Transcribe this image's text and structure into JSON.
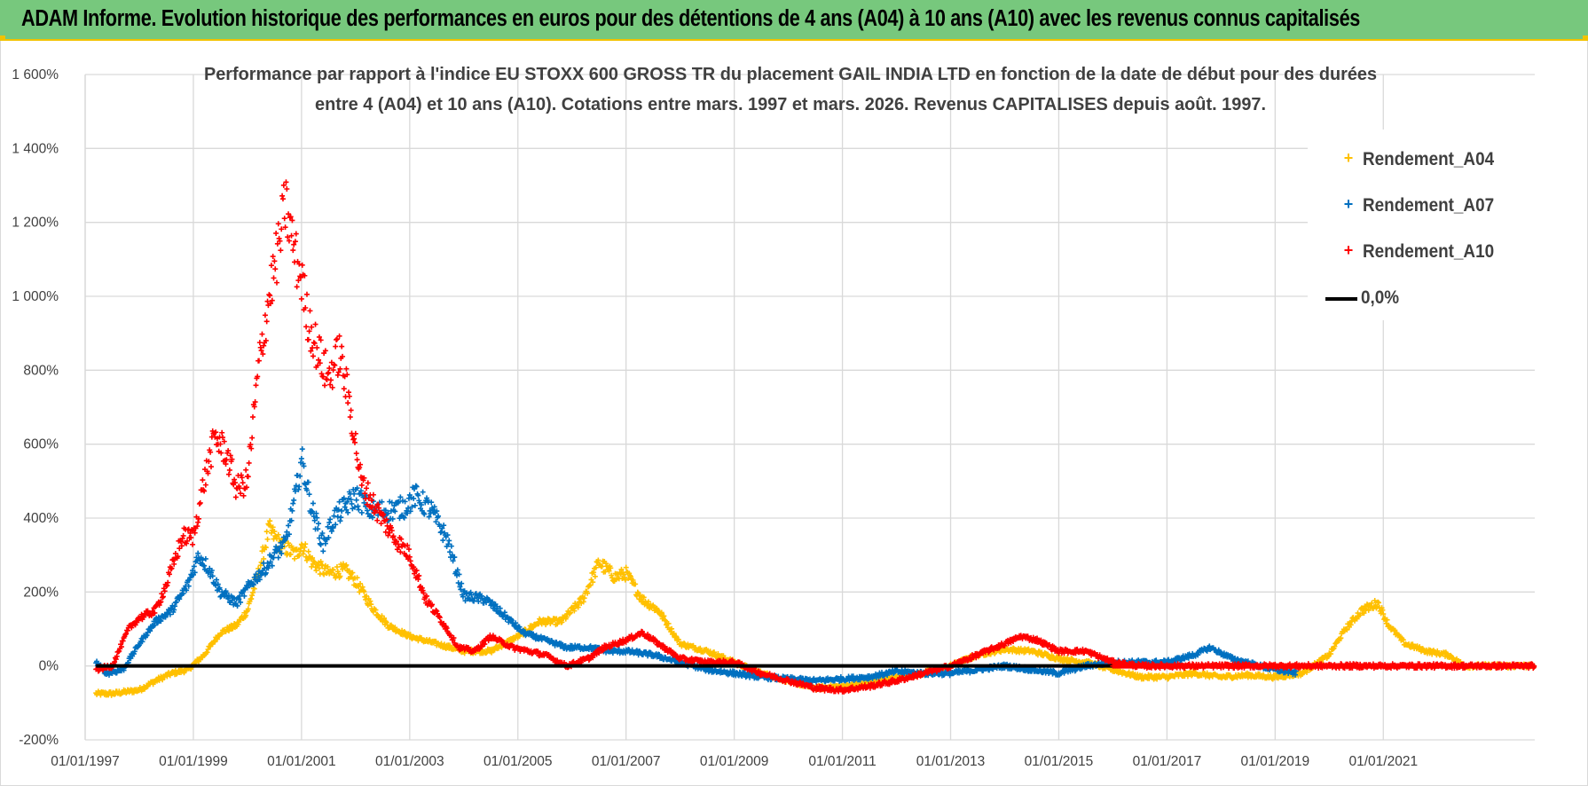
{
  "header": {
    "banner_text": "ADAM Informe. Evolution historique des performances en euros pour des détentions de 4 ans (A04) à 10 ans (A10) avec les revenus connus capitalisés"
  },
  "colors": {
    "banner_bg": "#77c87d",
    "banner_border": "#f2c200",
    "A04": "#ffc000",
    "A07": "#0070c0",
    "A10": "#ff0000",
    "zero": "#000000",
    "grid": "#d9d9d9"
  },
  "chart_data": {
    "type": "scatter",
    "title_lines": [
      "Performance par rapport à l'indice EU STOXX 600 GROSS TR  du placement GAIL INDIA LTD en fonction de la date de début pour des durées",
      "entre 4 (A04) et 10 ans (A10). Cotations entre mars. 1997 et mars. 2026. Revenus CAPITALISES depuis août. 1997."
    ],
    "y_ticks": [
      "-200%",
      "0%",
      "200%",
      "400%",
      "600%",
      "800%",
      "1 000%",
      "1 200%",
      "1 400%",
      "1 600%"
    ],
    "ylim": [
      -200,
      1600
    ],
    "x_ticks": [
      "01/01/1997",
      "01/01/1999",
      "01/01/2001",
      "01/01/2003",
      "01/01/2005",
      "01/01/2007",
      "01/01/2009",
      "01/01/2011",
      "01/01/2013",
      "01/01/2015",
      "01/01/2017",
      "01/01/2019",
      "01/01/2021"
    ],
    "xlim": [
      1997.0,
      2023.8
    ],
    "legend": [
      {
        "key": "A04",
        "label": "Rendement_A04",
        "marker": "+"
      },
      {
        "key": "A07",
        "label": "Rendement_A07",
        "marker": "+"
      },
      {
        "key": "A10",
        "label": "Rendement_A10",
        "marker": "+"
      },
      {
        "key": "zero",
        "label": "0,0%",
        "marker": "line"
      }
    ],
    "series": [
      {
        "name": "Rendement_A04",
        "key": "A04",
        "points": [
          [
            1997.2,
            -75
          ],
          [
            1997.5,
            -75
          ],
          [
            1998.0,
            -65
          ],
          [
            1998.3,
            -40
          ],
          [
            1998.6,
            -20
          ],
          [
            1998.9,
            -10
          ],
          [
            1999.2,
            30
          ],
          [
            1999.5,
            90
          ],
          [
            1999.8,
            110
          ],
          [
            2000.0,
            150
          ],
          [
            2000.2,
            250
          ],
          [
            2000.4,
            370
          ],
          [
            2000.6,
            330
          ],
          [
            2000.9,
            300
          ],
          [
            2001.0,
            330
          ],
          [
            2001.2,
            280
          ],
          [
            2001.5,
            250
          ],
          [
            2001.8,
            260
          ],
          [
            2002.0,
            230
          ],
          [
            2002.3,
            160
          ],
          [
            2002.6,
            110
          ],
          [
            2003.0,
            80
          ],
          [
            2003.5,
            60
          ],
          [
            2004.0,
            40
          ],
          [
            2004.5,
            40
          ],
          [
            2005.0,
            80
          ],
          [
            2005.4,
            120
          ],
          [
            2005.8,
            120
          ],
          [
            2006.2,
            180
          ],
          [
            2006.5,
            280
          ],
          [
            2006.8,
            240
          ],
          [
            2007.0,
            250
          ],
          [
            2007.3,
            180
          ],
          [
            2007.6,
            150
          ],
          [
            2008.0,
            60
          ],
          [
            2008.5,
            40
          ],
          [
            2009.0,
            10
          ],
          [
            2009.5,
            -20
          ],
          [
            2010.0,
            -40
          ],
          [
            2010.5,
            -60
          ],
          [
            2011.0,
            -55
          ],
          [
            2011.5,
            -45
          ],
          [
            2012.0,
            -30
          ],
          [
            2012.5,
            -20
          ],
          [
            2013.0,
            0
          ],
          [
            2013.5,
            30
          ],
          [
            2014.0,
            45
          ],
          [
            2014.5,
            40
          ],
          [
            2015.0,
            20
          ],
          [
            2015.5,
            10
          ],
          [
            2016.0,
            -10
          ],
          [
            2016.5,
            -30
          ],
          [
            2017.0,
            -30
          ],
          [
            2017.5,
            -20
          ],
          [
            2018.0,
            -30
          ],
          [
            2018.5,
            -25
          ],
          [
            2019.0,
            -30
          ],
          [
            2019.5,
            -20
          ],
          [
            2020.0,
            30
          ],
          [
            2020.3,
            100
          ],
          [
            2020.6,
            150
          ],
          [
            2020.9,
            170
          ],
          [
            2021.1,
            110
          ],
          [
            2021.4,
            60
          ],
          [
            2021.8,
            40
          ],
          [
            2022.2,
            30
          ],
          [
            2022.5,
            0
          ],
          [
            2023.0,
            0
          ],
          [
            2023.8,
            0
          ]
        ]
      },
      {
        "name": "Rendement_A07",
        "key": "A07",
        "points": [
          [
            1997.2,
            10
          ],
          [
            1997.4,
            -20
          ],
          [
            1997.7,
            -10
          ],
          [
            1998.0,
            60
          ],
          [
            1998.3,
            120
          ],
          [
            1998.6,
            150
          ],
          [
            1998.9,
            220
          ],
          [
            1999.1,
            300
          ],
          [
            1999.3,
            260
          ],
          [
            1999.5,
            200
          ],
          [
            1999.8,
            170
          ],
          [
            2000.1,
            230
          ],
          [
            2000.3,
            260
          ],
          [
            2000.5,
            300
          ],
          [
            2000.7,
            330
          ],
          [
            2000.9,
            470
          ],
          [
            2001.0,
            560
          ],
          [
            2001.2,
            420
          ],
          [
            2001.4,
            330
          ],
          [
            2001.6,
            400
          ],
          [
            2001.8,
            430
          ],
          [
            2002.0,
            460
          ],
          [
            2002.3,
            420
          ],
          [
            2002.6,
            420
          ],
          [
            2002.9,
            430
          ],
          [
            2003.1,
            460
          ],
          [
            2003.4,
            420
          ],
          [
            2003.7,
            340
          ],
          [
            2004.0,
            190
          ],
          [
            2004.4,
            180
          ],
          [
            2004.8,
            130
          ],
          [
            2005.1,
            90
          ],
          [
            2005.5,
            70
          ],
          [
            2005.9,
            50
          ],
          [
            2006.3,
            50
          ],
          [
            2006.7,
            40
          ],
          [
            2007.0,
            40
          ],
          [
            2007.5,
            30
          ],
          [
            2008.0,
            10
          ],
          [
            2008.5,
            -10
          ],
          [
            2009.0,
            -20
          ],
          [
            2009.5,
            -30
          ],
          [
            2010.0,
            -35
          ],
          [
            2010.5,
            -40
          ],
          [
            2011.0,
            -35
          ],
          [
            2011.5,
            -30
          ],
          [
            2012.0,
            -15
          ],
          [
            2012.5,
            -20
          ],
          [
            2013.0,
            -20
          ],
          [
            2013.5,
            -10
          ],
          [
            2014.0,
            0
          ],
          [
            2014.5,
            -10
          ],
          [
            2015.0,
            -20
          ],
          [
            2015.5,
            0
          ],
          [
            2016.0,
            10
          ],
          [
            2016.5,
            10
          ],
          [
            2017.0,
            10
          ],
          [
            2017.5,
            30
          ],
          [
            2017.8,
            50
          ],
          [
            2018.2,
            20
          ],
          [
            2018.7,
            0
          ],
          [
            2019.0,
            -10
          ],
          [
            2019.4,
            -20
          ]
        ]
      },
      {
        "name": "Rendement_A10",
        "key": "A10",
        "points": [
          [
            1997.2,
            -10
          ],
          [
            1997.5,
            0
          ],
          [
            1997.8,
            100
          ],
          [
            1998.0,
            130
          ],
          [
            1998.3,
            150
          ],
          [
            1998.5,
            220
          ],
          [
            1998.8,
            350
          ],
          [
            1999.0,
            350
          ],
          [
            1999.2,
            500
          ],
          [
            1999.4,
            620
          ],
          [
            1999.6,
            580
          ],
          [
            1999.8,
            480
          ],
          [
            2000.0,
            500
          ],
          [
            2000.2,
            800
          ],
          [
            2000.4,
            1000
          ],
          [
            2000.6,
            1150
          ],
          [
            2000.7,
            1250
          ],
          [
            2000.9,
            1100
          ],
          [
            2001.0,
            1050
          ],
          [
            2001.1,
            950
          ],
          [
            2001.3,
            850
          ],
          [
            2001.5,
            780
          ],
          [
            2001.7,
            850
          ],
          [
            2001.9,
            700
          ],
          [
            2002.1,
            500
          ],
          [
            2002.4,
            420
          ],
          [
            2002.7,
            350
          ],
          [
            2003.0,
            300
          ],
          [
            2003.3,
            180
          ],
          [
            2003.6,
            120
          ],
          [
            2003.9,
            50
          ],
          [
            2004.2,
            40
          ],
          [
            2004.5,
            80
          ],
          [
            2004.9,
            50
          ],
          [
            2005.2,
            40
          ],
          [
            2005.5,
            30
          ],
          [
            2005.9,
            0
          ],
          [
            2006.3,
            20
          ],
          [
            2006.6,
            50
          ],
          [
            2007.0,
            70
          ],
          [
            2007.3,
            90
          ],
          [
            2007.6,
            60
          ],
          [
            2008.0,
            20
          ],
          [
            2008.5,
            10
          ],
          [
            2009.0,
            10
          ],
          [
            2009.5,
            -20
          ],
          [
            2010.0,
            -40
          ],
          [
            2010.5,
            -60
          ],
          [
            2011.0,
            -65
          ],
          [
            2011.5,
            -55
          ],
          [
            2012.0,
            -40
          ],
          [
            2012.5,
            -20
          ],
          [
            2013.0,
            0
          ],
          [
            2013.5,
            30
          ],
          [
            2014.0,
            60
          ],
          [
            2014.3,
            80
          ],
          [
            2014.6,
            70
          ],
          [
            2015.0,
            40
          ],
          [
            2015.5,
            40
          ],
          [
            2016.0,
            10
          ],
          [
            2016.5,
            0
          ],
          [
            2017.0,
            0
          ],
          [
            2018.0,
            0
          ],
          [
            2019.0,
            0
          ],
          [
            2020.0,
            0
          ],
          [
            2021.0,
            0
          ],
          [
            2022.0,
            0
          ],
          [
            2023.0,
            0
          ],
          [
            2023.8,
            0
          ]
        ]
      }
    ]
  }
}
